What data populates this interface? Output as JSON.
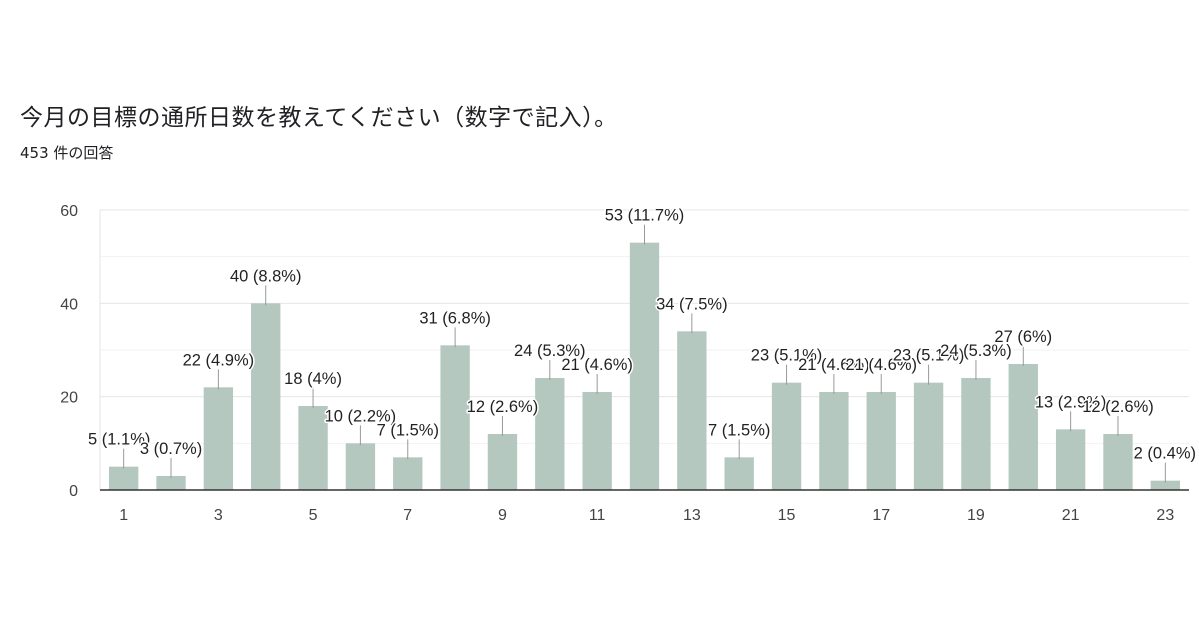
{
  "header": {
    "title": "今月の目標の通所日数を教えてください（数字で記入）。",
    "response_count": "453 件の回答"
  },
  "colors": {
    "bar": "#b4c8c0",
    "grid": "#e6e6e6",
    "axis": "#333333",
    "label_line": "#999999"
  },
  "chart_data": {
    "type": "bar",
    "title": "今月の目標の通所日数を教えてください（数字で記入）。",
    "xlabel": "",
    "ylabel": "",
    "ylim": [
      0,
      60
    ],
    "yticks": [
      0,
      20,
      40,
      60
    ],
    "categories": [
      "1",
      "2",
      "3",
      "4",
      "5",
      "6",
      "7",
      "8",
      "9",
      "10",
      "11",
      "12",
      "13",
      "14",
      "15",
      "16",
      "17",
      "18",
      "19",
      "20",
      "21",
      "22",
      "23"
    ],
    "xtick_labels": [
      "1",
      "3",
      "5",
      "7",
      "9",
      "11",
      "13",
      "15",
      "17",
      "19",
      "21",
      "23"
    ],
    "values": [
      5,
      3,
      22,
      40,
      18,
      10,
      7,
      31,
      12,
      24,
      21,
      53,
      34,
      7,
      23,
      21,
      21,
      23,
      24,
      27,
      13,
      12,
      2
    ],
    "data_labels": [
      "5 (1.1%)",
      "3 (0.7%)",
      "22 (4.9%)",
      "40 (8.8%)",
      "18 (4%)",
      "10 (2.2%)",
      "7 (1.5%)",
      "31 (6.8%)",
      "12 (2.6%)",
      "24 (5.3%)",
      "21 (4.6%)",
      "53 (11.7%)",
      "34 (7.5%)",
      "7 (1.5%)",
      "23 (5.1%)",
      "21 (4.6%)",
      "21 (4.6%)",
      "23 (5.1%)",
      "24 (5.3%)",
      "27 (6%)",
      "13 (2.9%)",
      "12 (2.6%)",
      "2 (0.4%)"
    ],
    "grid": true,
    "legend": "none"
  }
}
